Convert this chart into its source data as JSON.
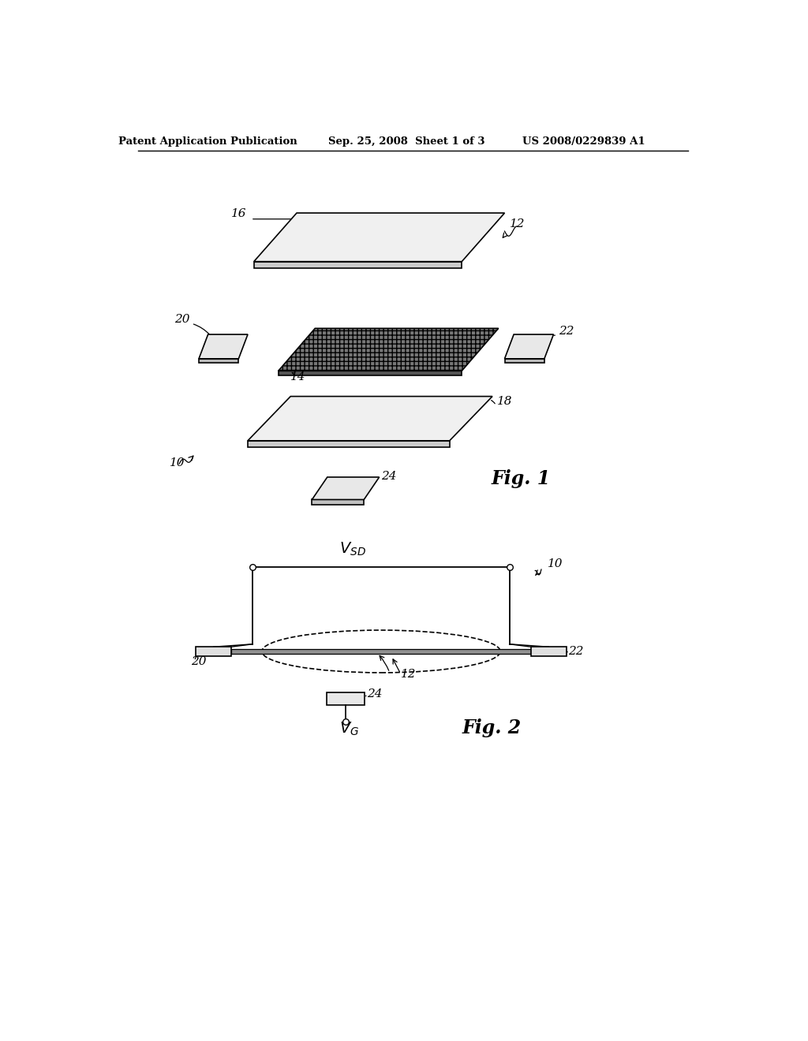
{
  "header_left": "Patent Application Publication",
  "header_mid": "Sep. 25, 2008  Sheet 1 of 3",
  "header_right": "US 2008/0229839 A1",
  "fig1_label": "Fig. 1",
  "fig2_label": "Fig. 2",
  "background_color": "#ffffff",
  "line_color": "#000000"
}
